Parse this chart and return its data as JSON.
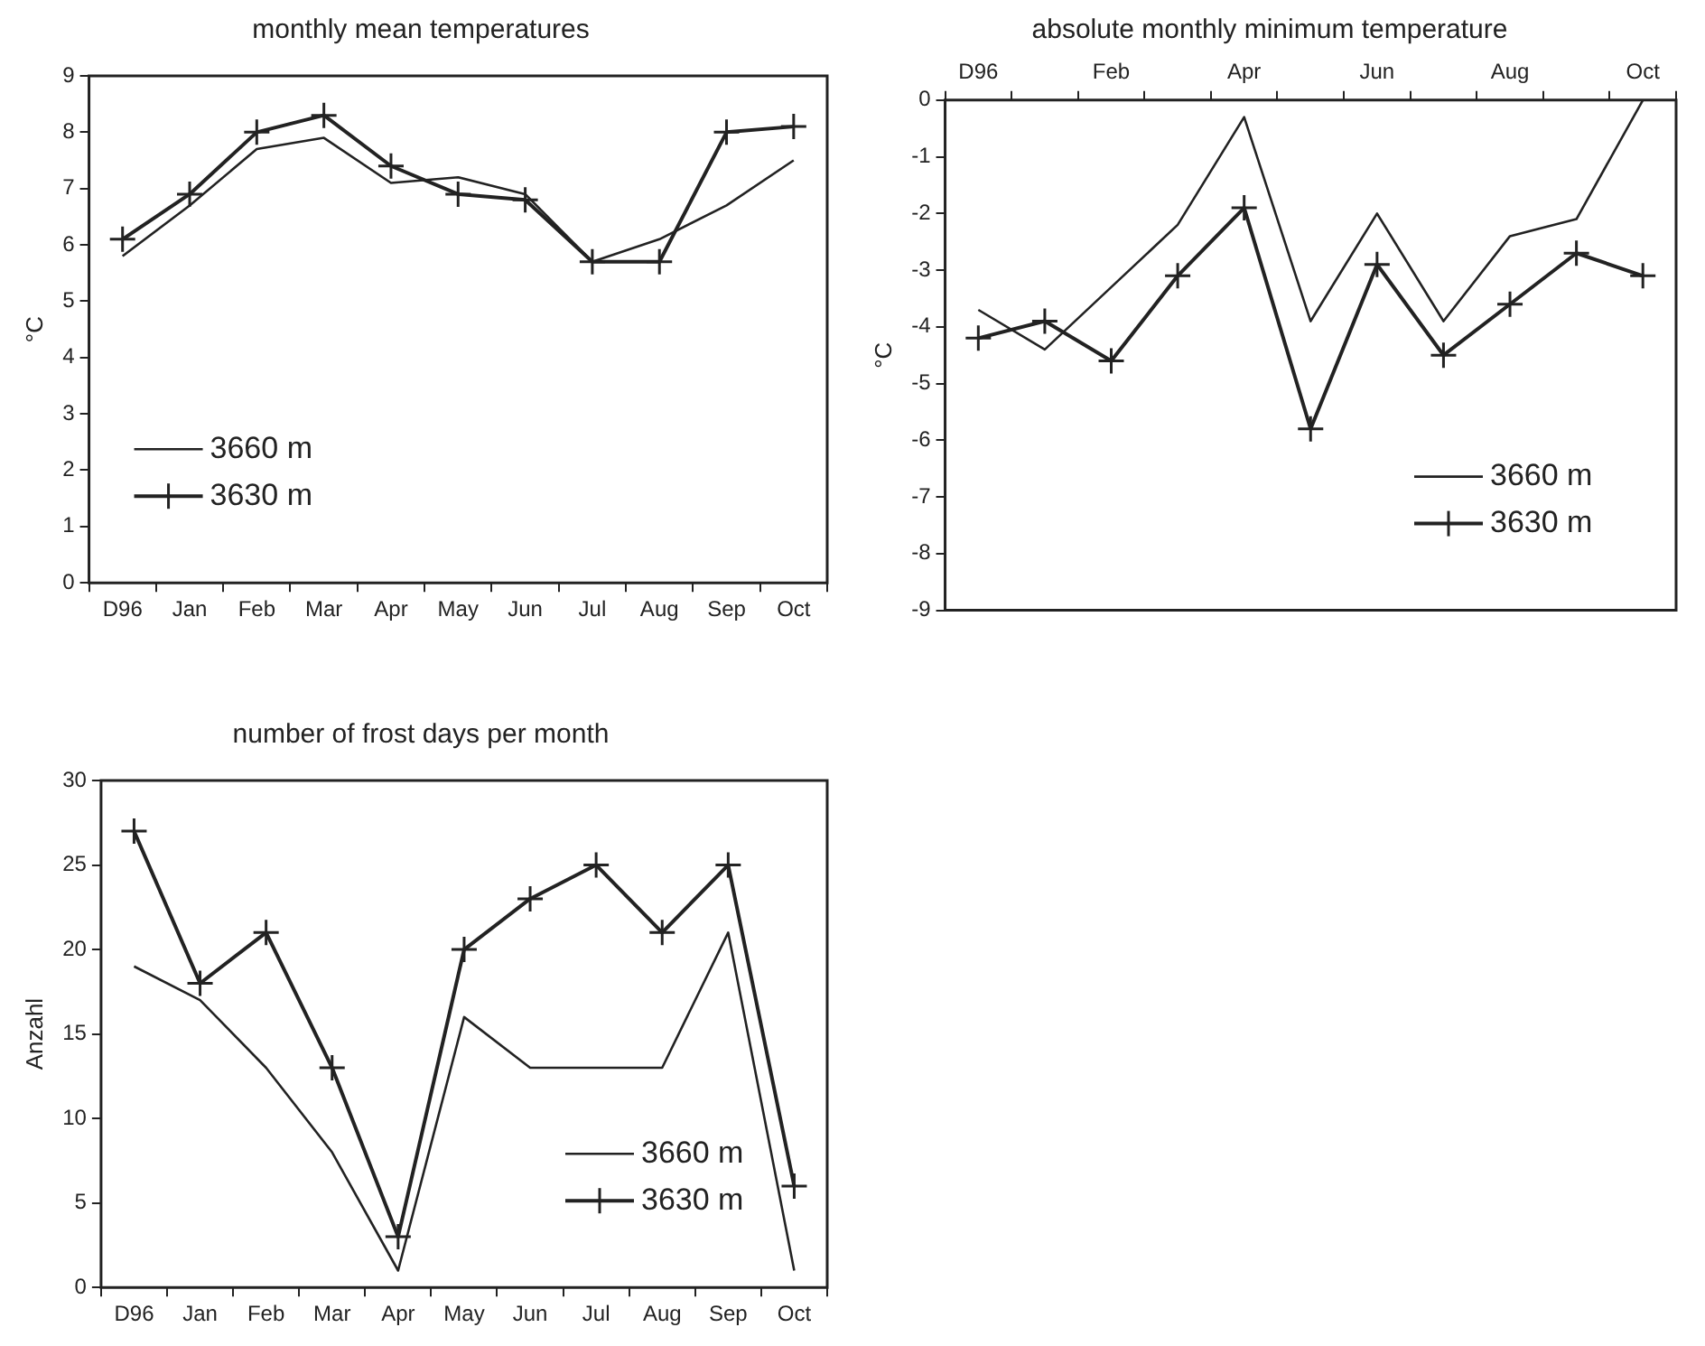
{
  "chart_data": [
    {
      "type": "line",
      "title": "monthly mean temperatures",
      "ylabel": "°C",
      "categories": [
        "D96",
        "Jan",
        "Feb",
        "Mar",
        "Apr",
        "May",
        "Jun",
        "Jul",
        "Aug",
        "Sep",
        "Oct"
      ],
      "ylim": [
        0,
        9
      ],
      "yticks": [
        0,
        1,
        2,
        3,
        4,
        5,
        6,
        7,
        8,
        9
      ],
      "grid": false,
      "legend": "bottom left",
      "line_style": "solid",
      "series": [
        {
          "name": "3660 m",
          "color": "#222222",
          "marker": "none",
          "values": [
            5.8,
            6.7,
            7.7,
            7.9,
            7.1,
            7.2,
            6.9,
            5.7,
            6.1,
            6.7,
            7.5
          ]
        },
        {
          "name": "3630 m",
          "color": "#222222",
          "marker": "cross",
          "values": [
            6.1,
            6.9,
            8.0,
            8.3,
            7.4,
            6.9,
            6.8,
            5.7,
            5.7,
            8.0,
            8.1
          ]
        }
      ]
    },
    {
      "type": "line",
      "title": "absolute monthly minimum temperature",
      "ylabel": "°C",
      "categories": [
        "D96",
        null,
        "Feb",
        null,
        "Apr",
        null,
        "Jun",
        null,
        "Aug",
        null,
        "Oct"
      ],
      "ylim": [
        -9,
        0
      ],
      "yticks": [
        -9,
        -8,
        -7,
        -6,
        -5,
        -4,
        -3,
        -2,
        -1,
        0
      ],
      "grid": false,
      "legend": "bottom right",
      "line_style": "solid",
      "series": [
        {
          "name": "3660 m",
          "color": "#222222",
          "marker": "none",
          "values": [
            -3.7,
            -4.4,
            -3.3,
            -2.2,
            -0.3,
            -3.9,
            -2.0,
            -3.9,
            -2.4,
            -2.1,
            0
          ]
        },
        {
          "name": "3630 m",
          "color": "#222222",
          "marker": "cross",
          "values": [
            -4.2,
            -3.9,
            -4.6,
            -3.1,
            -1.9,
            -5.8,
            -2.9,
            -4.5,
            -3.6,
            -2.7,
            -3.1
          ]
        }
      ]
    },
    {
      "type": "line",
      "title": "number of frost days per month",
      "ylabel": "Anzahl",
      "categories": [
        "D96",
        "Jan",
        "Feb",
        "Mar",
        "Apr",
        "May",
        "Jun",
        "Jul",
        "Aug",
        "Sep",
        "Oct"
      ],
      "ylim": [
        0,
        30
      ],
      "yticks": [
        0,
        5,
        10,
        15,
        20,
        25,
        30
      ],
      "grid": false,
      "legend": "bottom right",
      "line_style": "solid",
      "series": [
        {
          "name": "3660 m",
          "color": "#222222",
          "marker": "none",
          "values": [
            19,
            17,
            13,
            8,
            1,
            16,
            13,
            13,
            13,
            21,
            1
          ]
        },
        {
          "name": "3630 m",
          "color": "#222222",
          "marker": "cross",
          "values": [
            27,
            18,
            21,
            13,
            3,
            20,
            23,
            25,
            21,
            25,
            6
          ]
        }
      ]
    }
  ]
}
